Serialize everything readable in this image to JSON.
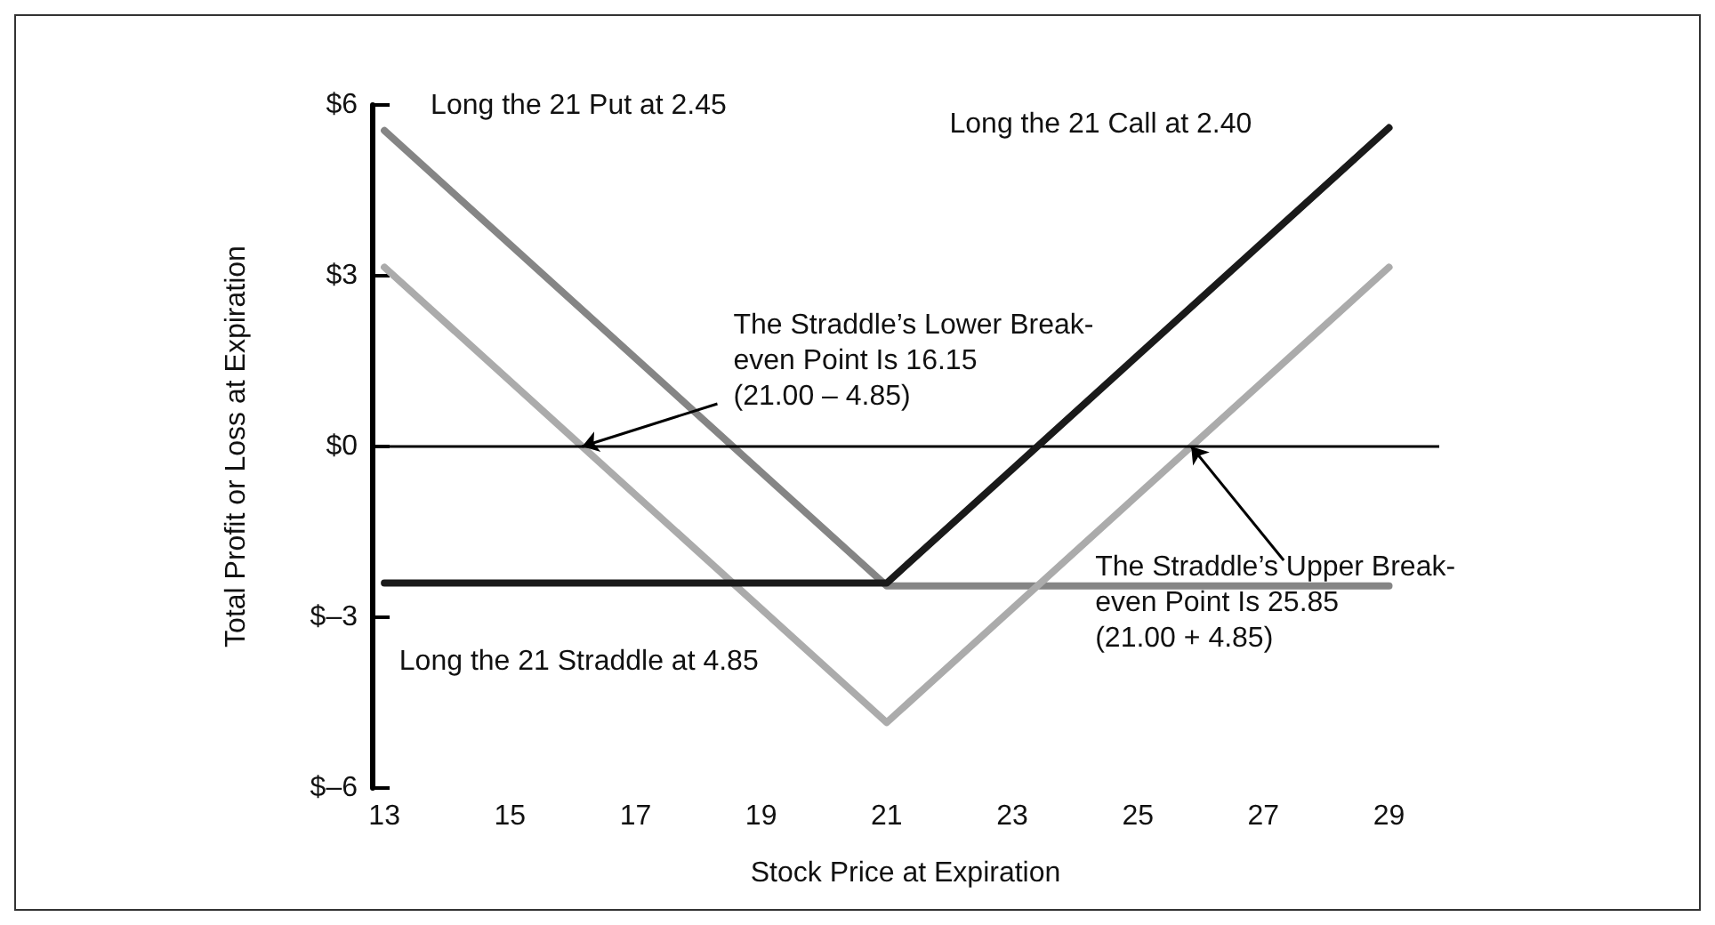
{
  "chart_data": {
    "type": "line",
    "xlabel": "Stock Price at Expiration",
    "ylabel": "Total Profit or Loss at Expiration",
    "series": [
      {
        "name": "Long the 21 Put at 2.45",
        "color": "#858585",
        "x": [
          13,
          21,
          29
        ],
        "values": [
          5.55,
          -2.45,
          -2.45
        ]
      },
      {
        "name": "Long the 21 Call at 2.40",
        "color": "#1a1a1a",
        "x": [
          13,
          21,
          29
        ],
        "values": [
          -2.4,
          -2.4,
          5.6
        ]
      },
      {
        "name": "Long the 21 Straddle at 4.85",
        "color": "#ababab",
        "x": [
          13,
          21,
          29
        ],
        "values": [
          3.15,
          -4.85,
          3.15
        ]
      }
    ],
    "xlim": [
      12.8,
      29.8
    ],
    "xticks": [
      13,
      15,
      17,
      19,
      21,
      23,
      25,
      27,
      29
    ],
    "ylim": [
      -6,
      6
    ],
    "yticks": [
      {
        "value": -6,
        "label": "$–6"
      },
      {
        "value": -3,
        "label": "$–3"
      },
      {
        "value": 0,
        "label": "$0"
      },
      {
        "value": 3,
        "label": "$3"
      },
      {
        "value": 6,
        "label": "$6"
      }
    ],
    "ref_lines": [
      {
        "axis": "y",
        "value": 0,
        "color": "#000000"
      }
    ],
    "annotations": [
      {
        "text": "The Straddle’s Lower Break-\neven Point Is 16.15\n(21.00 – 4.85)",
        "x": 16.15,
        "y": 0
      },
      {
        "text": "The Straddle’s Upper Break-\neven Point Is 25.85\n(21.00 + 4.85)",
        "x": 25.85,
        "y": 0
      }
    ],
    "grid": false,
    "legend": false,
    "marker": "none",
    "line_style": "solid"
  }
}
